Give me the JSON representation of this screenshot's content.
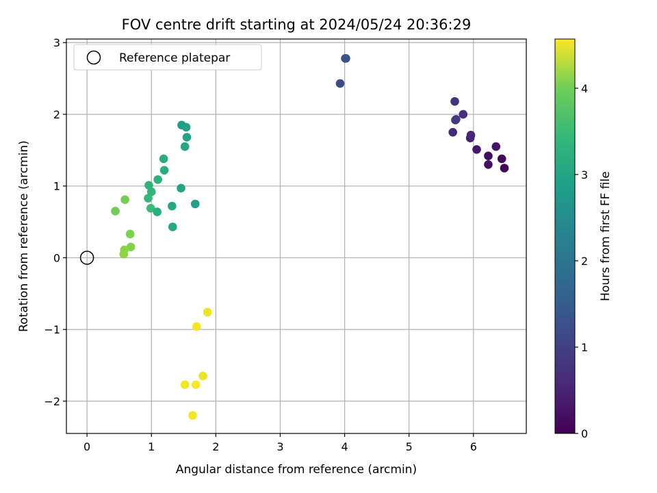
{
  "chart_data": {
    "type": "scatter",
    "title": "FOV centre drift starting at 2024/05/24 20:36:29",
    "xlabel": "Angular distance from reference (arcmin)",
    "ylabel": "Rotation from reference (arcmin)",
    "xlim": [
      -0.32,
      6.82
    ],
    "ylim": [
      -2.45,
      3.05
    ],
    "xticks": [
      0,
      1,
      2,
      3,
      4,
      5,
      6
    ],
    "xtick_labels": [
      "0",
      "1",
      "2",
      "3",
      "4",
      "5",
      "6"
    ],
    "yticks": [
      -2,
      -1,
      0,
      1,
      2,
      3
    ],
    "ytick_labels": [
      "−2",
      "−1",
      "0",
      "1",
      "2",
      "3"
    ],
    "grid": true,
    "legend": {
      "placement": "upper-left",
      "entries": [
        "Reference platepar"
      ]
    },
    "reference_point": {
      "x": 0,
      "y": 0,
      "marker": "open-circle",
      "color": "#000000"
    },
    "colorbar": {
      "label": "Hours from first FF file",
      "range": [
        0,
        4.57
      ],
      "ticks": [
        0,
        1,
        2,
        3,
        4
      ],
      "tick_labels": [
        "0",
        "1",
        "2",
        "3",
        "4"
      ],
      "colormap": "viridis"
    },
    "series": [
      {
        "x": [
          6.48,
          6.44,
          6.23,
          6.23,
          6.35,
          6.05,
          5.95,
          5.96,
          5.68,
          5.84,
          5.72,
          5.73,
          5.71,
          3.93,
          4.02,
          4.01,
          1.47,
          1.54,
          1.55,
          1.52,
          1.19,
          1.2,
          1.1,
          0.96,
          1.0,
          0.95,
          0.99,
          1.09,
          1.32,
          1.46,
          1.68,
          1.33,
          0.44,
          0.59,
          0.67,
          0.68,
          0.58,
          0.57,
          1.87,
          1.7,
          1.8,
          1.52,
          1.69,
          1.64
        ],
        "y": [
          1.25,
          1.38,
          1.42,
          1.3,
          1.55,
          1.51,
          1.67,
          1.71,
          1.75,
          2.0,
          1.92,
          1.93,
          2.18,
          2.43,
          2.78,
          2.78,
          1.85,
          1.82,
          1.68,
          1.55,
          1.38,
          1.22,
          1.09,
          1.01,
          0.92,
          0.83,
          0.69,
          0.64,
          0.72,
          0.97,
          0.75,
          0.43,
          0.65,
          0.81,
          0.33,
          0.15,
          0.11,
          0.05,
          -0.76,
          -0.96,
          -1.65,
          -1.77,
          -1.77,
          -2.2
        ],
        "c": [
          0.05,
          0.1,
          0.15,
          0.2,
          0.25,
          0.3,
          0.4,
          0.5,
          0.55,
          0.6,
          0.7,
          0.8,
          0.7,
          1.05,
          1.1,
          1.15,
          2.55,
          2.6,
          2.65,
          2.7,
          2.8,
          2.85,
          2.9,
          2.95,
          3.0,
          3.05,
          3.1,
          2.85,
          2.75,
          2.65,
          2.6,
          2.75,
          3.55,
          3.6,
          3.65,
          3.7,
          3.75,
          3.8,
          4.45,
          4.5,
          4.45,
          4.5,
          4.55,
          4.5
        ]
      }
    ]
  }
}
